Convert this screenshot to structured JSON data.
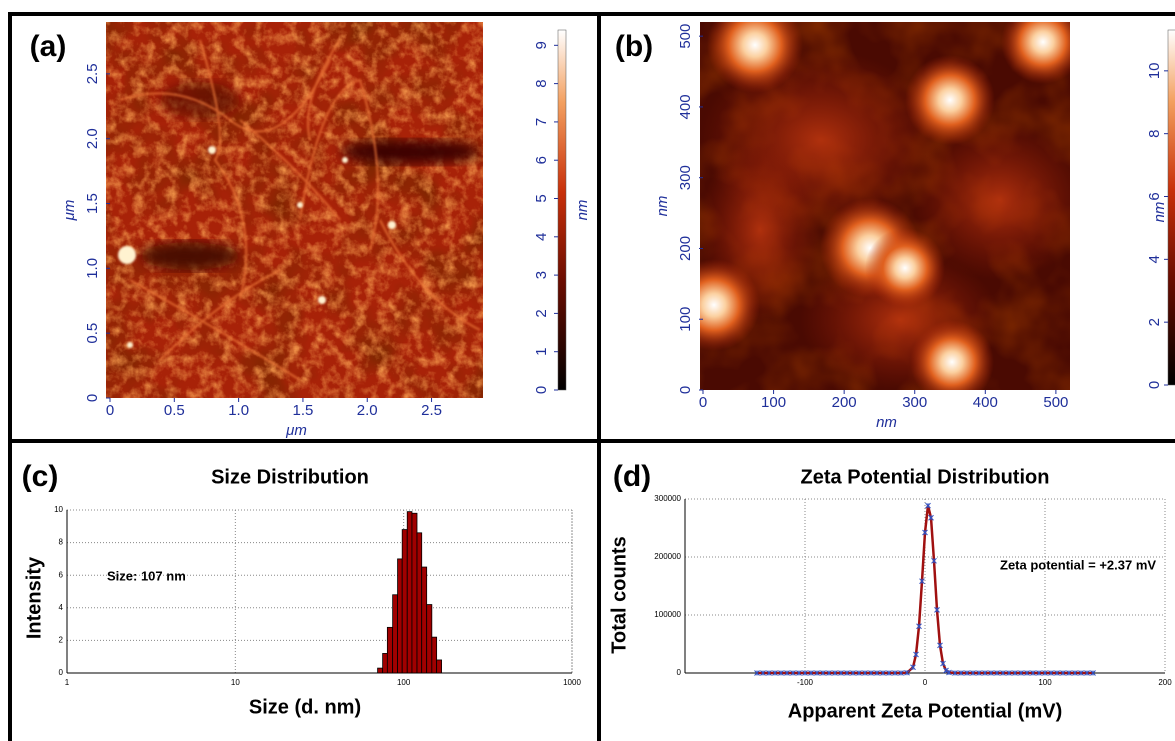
{
  "chart_data": [
    {
      "type": "image",
      "panel_label": "(a)",
      "xlabel": "μm",
      "ylabel": "μm",
      "xlim": [
        0,
        2.9
      ],
      "ylim": [
        0,
        2.9
      ],
      "xticks": [
        0,
        0.5,
        {
          "value": 1,
          "label": "1.0"
        },
        1.5,
        {
          "value": 2,
          "label": "2.0"
        },
        2.5
      ],
      "yticks": [
        0,
        0.5,
        {
          "value": 1,
          "label": "1.0"
        },
        1.5,
        {
          "value": 2,
          "label": "2.0"
        },
        2.5
      ],
      "colorbar": {
        "label": "nm",
        "lim": [
          0,
          9.4
        ],
        "ticks": [
          0,
          1,
          2,
          3,
          4,
          5,
          6,
          7,
          8,
          9
        ]
      }
    },
    {
      "type": "image",
      "panel_label": "(b)",
      "xlabel": "nm",
      "ylabel": "nm",
      "xlim": [
        0,
        520
      ],
      "ylim": [
        0,
        520
      ],
      "xticks": [
        0,
        100,
        200,
        300,
        400,
        500
      ],
      "yticks": [
        0,
        100,
        200,
        300,
        400,
        500
      ],
      "colorbar": {
        "label": "nm",
        "lim": [
          0,
          11.3
        ],
        "ticks": [
          0,
          2,
          4,
          6,
          8,
          10
        ]
      }
    },
    {
      "type": "histogram",
      "panel_label": "(c)",
      "title": "Size Distribution",
      "xlabel": "Size (d. nm)",
      "ylabel": "Intensity",
      "annotation": "Size: 107 nm",
      "xscale": "log",
      "grid": true,
      "color": "#a00000",
      "xlim": [
        1,
        1000
      ],
      "xticks": [
        1,
        10,
        100,
        1000
      ],
      "ylim": [
        0,
        10
      ],
      "yticks": [
        0,
        2,
        4,
        6,
        8,
        10
      ],
      "bins": [
        70,
        75,
        80,
        86,
        92,
        98,
        105,
        112,
        120,
        128,
        137,
        147,
        157,
        168
      ],
      "values": [
        0.3,
        1.2,
        2.8,
        4.8,
        7.0,
        8.8,
        9.9,
        9.8,
        8.6,
        6.5,
        4.2,
        2.2,
        0.8
      ]
    },
    {
      "type": "line",
      "panel_label": "(d)",
      "title": "Zeta Potential Distribution",
      "xlabel": "Apparent Zeta Potential (mV)",
      "ylabel": "Total counts",
      "annotation": "Zeta potential = +2.37 mV",
      "grid": true,
      "color": "#a01010",
      "marker_color": "#3050c0",
      "xlim": [
        -200,
        200
      ],
      "xticks": [
        -100,
        0,
        100,
        200
      ],
      "ylim": [
        0,
        300000
      ],
      "yticks": [
        0,
        100000,
        200000,
        300000
      ],
      "x": [
        -140,
        -135,
        -130,
        -125,
        -120,
        -115,
        -110,
        -105,
        -100,
        -95,
        -90,
        -85,
        -80,
        -75,
        -70,
        -65,
        -60,
        -55,
        -50,
        -45,
        -40,
        -35,
        -30,
        -25,
        -20,
        -15,
        -10,
        -7.5,
        -5,
        -2.5,
        0,
        2.5,
        5,
        7.5,
        10,
        12.5,
        15,
        17.5,
        20,
        25,
        30,
        35,
        40,
        45,
        50,
        55,
        60,
        65,
        70,
        75,
        80,
        85,
        90,
        95,
        100,
        105,
        110,
        115,
        120,
        125,
        130,
        135,
        140
      ],
      "values": [
        0,
        0,
        0,
        0,
        0,
        0,
        0,
        0,
        0,
        0,
        0,
        0,
        0,
        0,
        0,
        0,
        0,
        0,
        0,
        0,
        0,
        0,
        0,
        0,
        0,
        450,
        9900,
        31900,
        80600,
        158300,
        242200,
        288600,
        267700,
        193400,
        108800,
        47700,
        16300,
        4300,
        900,
        0,
        0,
        0,
        0,
        0,
        0,
        0,
        0,
        0,
        0,
        0,
        0,
        0,
        0,
        0,
        0,
        0,
        0,
        0,
        0,
        0,
        0,
        0,
        0
      ]
    }
  ]
}
